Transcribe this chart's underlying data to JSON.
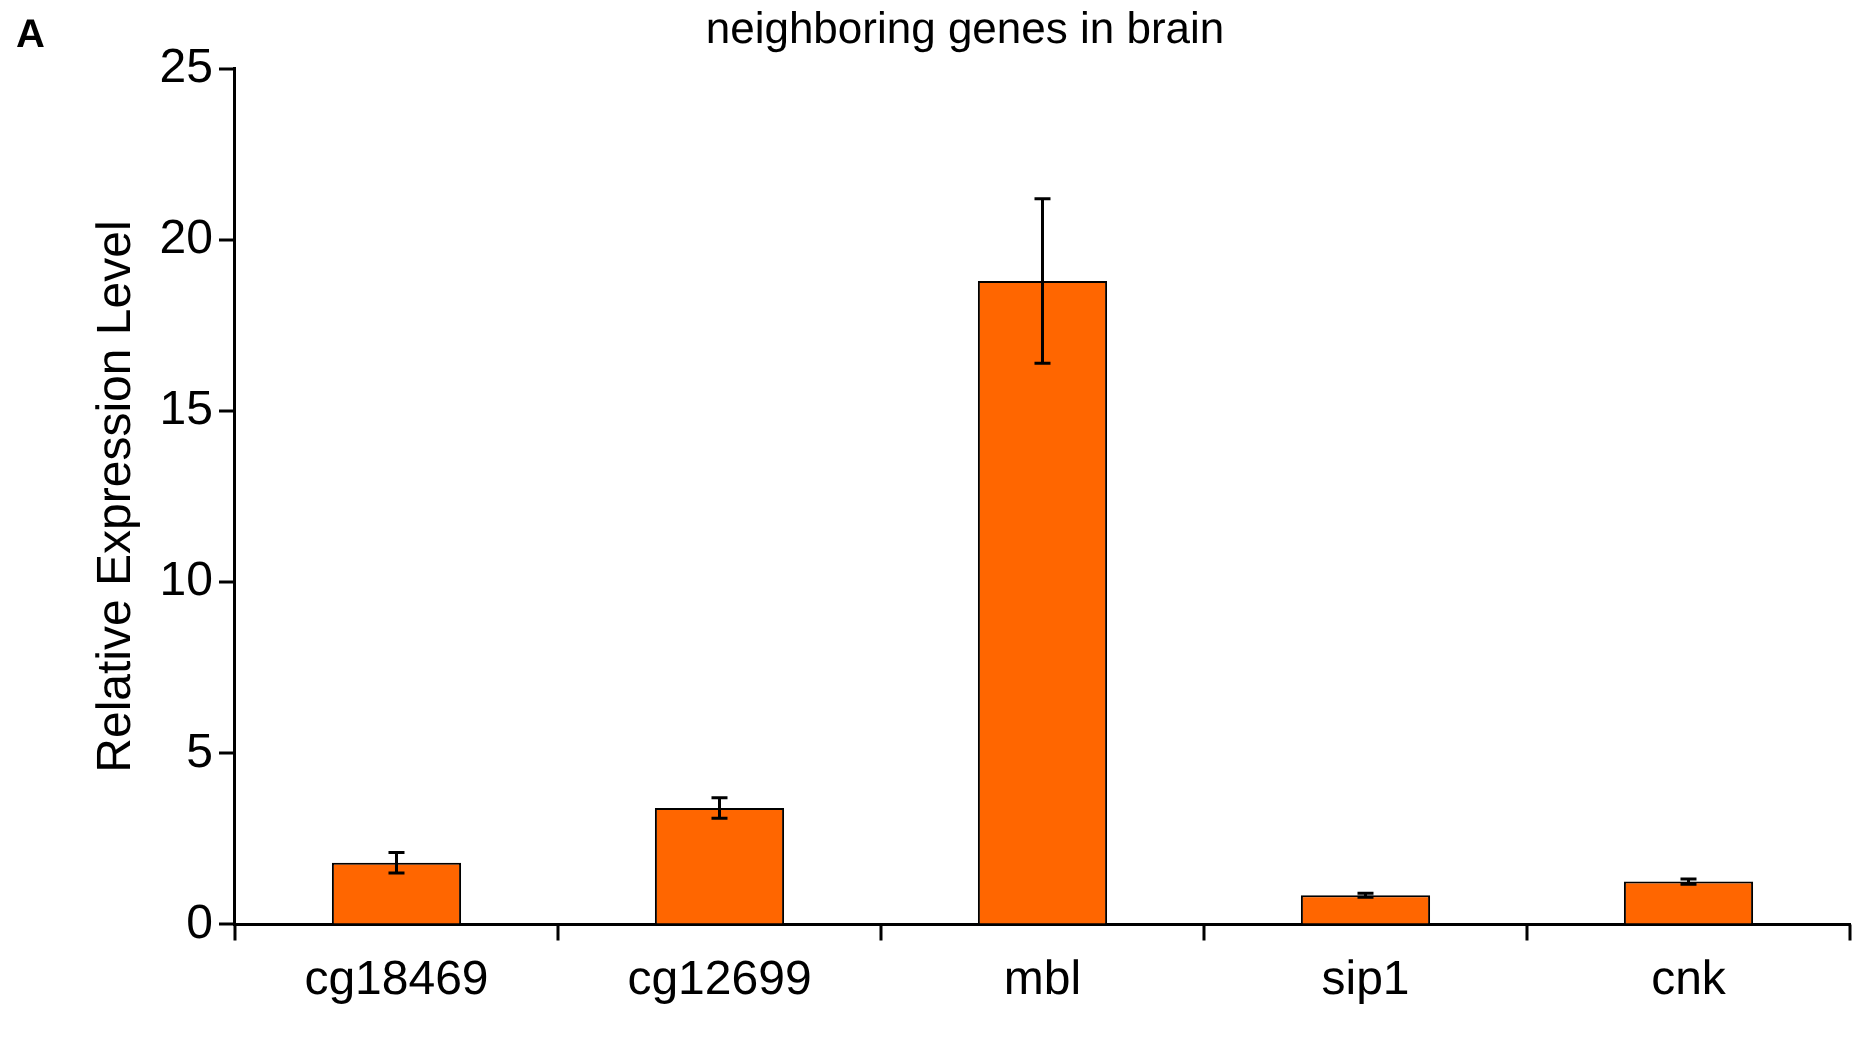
{
  "chart_data": {
    "type": "bar",
    "title": "neighboring genes in brain",
    "ylabel": "Relative Expression Level",
    "annotations": [
      "A"
    ],
    "categories": [
      "cg18469",
      "cg12699",
      "mbl",
      "sip1",
      "cnk"
    ],
    "values": [
      1.8,
      3.4,
      18.8,
      0.85,
      1.25
    ],
    "errors": [
      0.3,
      0.3,
      2.4,
      0.06,
      0.08
    ],
    "color": "#ff6600",
    "ylim": [
      0,
      25
    ],
    "yticks": [
      0,
      5,
      10,
      15,
      20,
      25
    ],
    "grid": false,
    "legend": false
  }
}
